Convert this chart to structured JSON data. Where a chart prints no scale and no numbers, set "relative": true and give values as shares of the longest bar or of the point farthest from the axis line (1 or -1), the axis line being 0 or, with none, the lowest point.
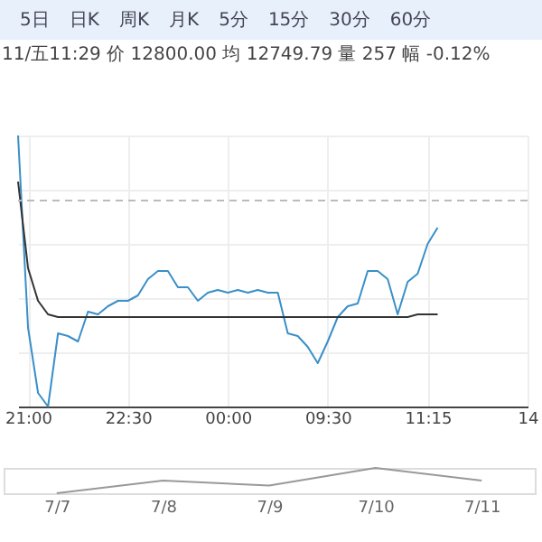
{
  "chart_data": [
    {
      "type": "line",
      "subtitle": "11/五11:29 价 12800.00 均 12749.79 量 257 幅 -0.12%",
      "annotations": [
        "5日",
        "日K",
        "周K",
        "月K",
        "5分",
        "15分",
        "30分",
        "60分"
      ],
      "relative": true,
      "grid": true,
      "categories": [
        null,
        "21:00",
        null,
        null,
        null,
        null,
        null,
        null,
        null,
        null,
        null,
        "22:30",
        null,
        null,
        null,
        null,
        null,
        null,
        null,
        null,
        null,
        "00:00",
        null,
        null,
        null,
        null,
        null,
        null,
        null,
        null,
        null,
        "09:30",
        null,
        null,
        null,
        null,
        null,
        null,
        null,
        null,
        null,
        "11:15",
        null,
        null,
        null,
        null,
        null,
        null,
        null,
        null,
        null,
        "14"
      ],
      "ref_lines": [
        {
          "axis": "y",
          "value": 0.76,
          "color": "#bbbbbb",
          "line_style": "dashed"
        }
      ],
      "series": [
        {
          "color": "#3a8fc8",
          "values": [
            1,
            0.29,
            0.05,
            0,
            0.27,
            0.26,
            0.24,
            0.35,
            0.34,
            0.37,
            0.39,
            0.39,
            0.41,
            0.47,
            0.5,
            0.5,
            0.44,
            0.44,
            0.39,
            0.42,
            0.43,
            0.42,
            0.43,
            0.42,
            0.43,
            0.42,
            0.42,
            0.27,
            0.26,
            0.22,
            0.16,
            0.24,
            0.33,
            0.37,
            0.38,
            0.5,
            0.5,
            0.47,
            0.34,
            0.46,
            0.49,
            0.6,
            0.66,
            null,
            null,
            null,
            null,
            null,
            null,
            null,
            null,
            null
          ]
        },
        {
          "color": "#333333",
          "values": [
            0.83,
            0.51,
            0.39,
            0.34,
            0.33,
            0.33,
            0.33,
            0.33,
            0.33,
            0.33,
            0.33,
            0.33,
            0.33,
            0.33,
            0.33,
            0.33,
            0.33,
            0.33,
            0.33,
            0.33,
            0.33,
            0.33,
            0.33,
            0.33,
            0.33,
            0.33,
            0.33,
            0.33,
            0.33,
            0.33,
            0.33,
            0.33,
            0.33,
            0.33,
            0.33,
            0.33,
            0.33,
            0.33,
            0.33,
            0.33,
            0.34,
            0.34,
            0.34,
            null,
            null,
            null,
            null,
            null,
            null,
            null,
            null,
            null
          ]
        }
      ]
    },
    {
      "type": "line",
      "relative": true,
      "categories": [
        "7/7",
        "7/8",
        "7/9",
        "7/10",
        "7/11"
      ],
      "series": [
        {
          "color": "#999999",
          "values": [
            0,
            0.5,
            0.3,
            1,
            0.5
          ]
        }
      ]
    }
  ]
}
